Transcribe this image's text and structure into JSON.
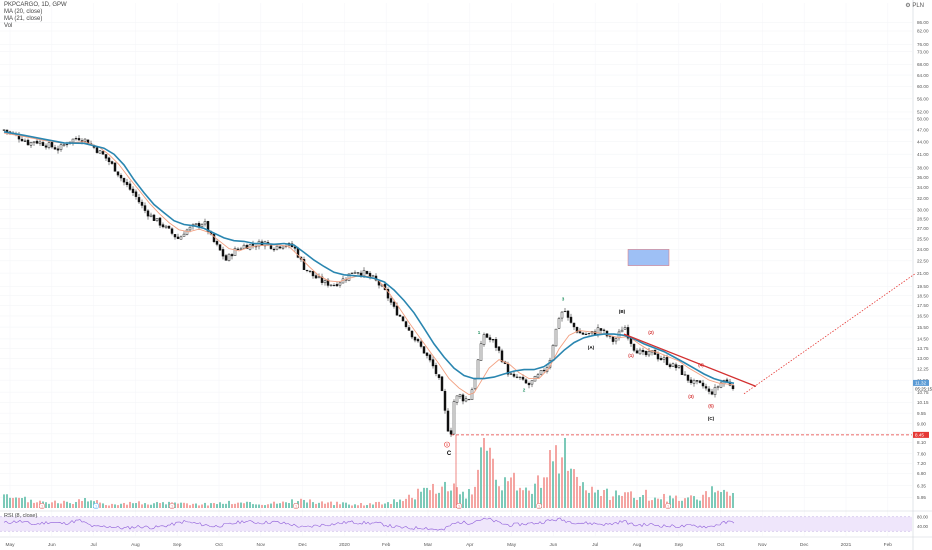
{
  "legend": {
    "symbol": "PKPCARGO, 1D, GPW",
    "ma1": "MA (20, close)",
    "ma2": "MA (21, close)",
    "vol": "Vol",
    "rsi": "RSI (8, close)"
  },
  "settings_label": "PLN",
  "chart_data": {
    "type": "candlestick",
    "title": "PKPCARGO, 1D, GPW",
    "y_scale": "log",
    "ylim": [
      5.6,
      96
    ],
    "price_ticks": [
      "86.00",
      "82.00",
      "76.00",
      "73.00",
      "68.00",
      "64.00",
      "60.00",
      "56.00",
      "52.00",
      "50.00",
      "47.00",
      "44.00",
      "41.00",
      "38.00",
      "36.00",
      "34.00",
      "32.00",
      "30.00",
      "28.50",
      "27.00",
      "25.50",
      "24.00",
      "22.50",
      "21.00",
      "19.50",
      "18.50",
      "17.50",
      "16.50",
      "15.50",
      "14.50",
      "13.75",
      "13.00",
      "12.25",
      "11.50",
      "10.75",
      "10.15",
      "9.55",
      "9.00",
      "8.50",
      "8.10",
      "7.60",
      "7.20",
      "6.80",
      "6.35",
      "5.95"
    ],
    "x_tick_labels": [
      "May",
      "Jun",
      "Jul",
      "Aug",
      "Sep",
      "Oct",
      "Nov",
      "Dec",
      "2020",
      "Feb",
      "Mar",
      "Apr",
      "May",
      "Jun",
      "Jul",
      "Aug",
      "Sep",
      "Oct",
      "Nov",
      "Dec",
      "2021",
      "Feb"
    ],
    "price_path": [
      [
        0,
        47
      ],
      [
        10,
        45.8
      ],
      [
        20,
        44.5
      ],
      [
        25,
        43.5
      ],
      [
        30,
        44.2
      ],
      [
        40,
        43.5
      ],
      [
        50,
        42.6
      ],
      [
        55,
        42.2
      ],
      [
        65,
        44.2
      ],
      [
        75,
        45
      ],
      [
        82,
        44.3
      ],
      [
        90,
        42.6
      ],
      [
        100,
        40.6
      ],
      [
        110,
        38.1
      ],
      [
        120,
        35
      ],
      [
        130,
        32.8
      ],
      [
        140,
        30
      ],
      [
        150,
        28.5
      ],
      [
        160,
        27.3
      ],
      [
        170,
        26
      ],
      [
        175,
        25.4
      ],
      [
        180,
        26.5
      ],
      [
        190,
        27.3
      ],
      [
        200,
        28
      ],
      [
        208,
        25.4
      ],
      [
        215,
        24
      ],
      [
        222,
        22.6
      ],
      [
        230,
        23.8
      ],
      [
        240,
        24.5
      ],
      [
        250,
        24.6
      ],
      [
        260,
        25
      ],
      [
        270,
        24.3
      ],
      [
        280,
        24.7
      ],
      [
        290,
        24.3
      ],
      [
        300,
        21.7
      ],
      [
        310,
        20.6
      ],
      [
        320,
        19.9
      ],
      [
        330,
        19.7
      ],
      [
        340,
        20.3
      ],
      [
        350,
        21.3
      ],
      [
        360,
        21
      ],
      [
        370,
        20.3
      ],
      [
        380,
        19.1
      ],
      [
        390,
        17.2
      ],
      [
        400,
        16
      ],
      [
        410,
        14.6
      ],
      [
        420,
        13.5
      ],
      [
        430,
        12.3
      ],
      [
        436,
        11.3
      ],
      [
        440,
        10
      ],
      [
        443,
        8.8
      ],
      [
        447,
        8.6
      ],
      [
        450,
        10.2
      ],
      [
        455,
        10.6
      ],
      [
        460,
        10.3
      ],
      [
        465,
        10.4
      ],
      [
        470,
        11.3
      ],
      [
        475,
        13.2
      ],
      [
        480,
        14.9
      ],
      [
        485,
        14.5
      ],
      [
        490,
        14.2
      ],
      [
        495,
        13.5
      ],
      [
        500,
        12.6
      ],
      [
        505,
        11.9
      ],
      [
        510,
        11.6
      ],
      [
        515,
        11.7
      ],
      [
        520,
        11.3
      ],
      [
        525,
        11.2
      ],
      [
        530,
        11.5
      ],
      [
        535,
        11.8
      ],
      [
        540,
        12.2
      ],
      [
        545,
        12.6
      ],
      [
        550,
        14.5
      ],
      [
        555,
        16.4
      ],
      [
        560,
        17.2
      ],
      [
        565,
        16
      ],
      [
        570,
        15.5
      ],
      [
        575,
        15
      ],
      [
        580,
        14.9
      ],
      [
        585,
        14.9
      ],
      [
        590,
        15
      ],
      [
        595,
        15.4
      ],
      [
        600,
        15
      ],
      [
        605,
        14.6
      ],
      [
        610,
        14.3
      ],
      [
        615,
        14.9
      ],
      [
        620,
        15.7
      ],
      [
        625,
        14.6
      ],
      [
        630,
        13.8
      ],
      [
        635,
        13.5
      ],
      [
        640,
        13.2
      ],
      [
        645,
        13.3
      ],
      [
        650,
        13.5
      ],
      [
        655,
        13
      ],
      [
        660,
        12.9
      ],
      [
        665,
        12.6
      ],
      [
        670,
        12.4
      ],
      [
        675,
        12.3
      ],
      [
        680,
        11.8
      ],
      [
        685,
        11.5
      ],
      [
        690,
        11.3
      ],
      [
        695,
        11.2
      ],
      [
        700,
        11.1
      ],
      [
        705,
        10.7
      ],
      [
        710,
        10.8
      ],
      [
        715,
        11.2
      ],
      [
        720,
        11.5
      ],
      [
        725,
        11.3
      ],
      [
        730,
        11.1
      ]
    ],
    "series": [
      {
        "name": "MA (20, close)",
        "color": "#f2a081"
      },
      {
        "name": "MA (21, close)",
        "color": "#2a86b0"
      }
    ],
    "ma_slow": [
      [
        0,
        46.5
      ],
      [
        20,
        45.6
      ],
      [
        40,
        44.6
      ],
      [
        60,
        43.7
      ],
      [
        80,
        43.6
      ],
      [
        100,
        42.4
      ],
      [
        110,
        41
      ],
      [
        120,
        38.6
      ],
      [
        130,
        35.5
      ],
      [
        140,
        33
      ],
      [
        150,
        30.9
      ],
      [
        160,
        29.5
      ],
      [
        170,
        28.2
      ],
      [
        180,
        27.6
      ],
      [
        190,
        27.4
      ],
      [
        200,
        27
      ],
      [
        210,
        26.3
      ],
      [
        220,
        25.6
      ],
      [
        230,
        25.2
      ],
      [
        240,
        25.1
      ],
      [
        250,
        24.8
      ],
      [
        260,
        24.8
      ],
      [
        270,
        24.7
      ],
      [
        280,
        24.8
      ],
      [
        290,
        24.6
      ],
      [
        300,
        23.6
      ],
      [
        310,
        22.6
      ],
      [
        320,
        21.8
      ],
      [
        330,
        21.1
      ],
      [
        340,
        20.8
      ],
      [
        350,
        20.7
      ],
      [
        360,
        20.6
      ],
      [
        370,
        20.4
      ],
      [
        380,
        20
      ],
      [
        390,
        19.1
      ],
      [
        400,
        18
      ],
      [
        410,
        16.8
      ],
      [
        420,
        15.4
      ],
      [
        430,
        14.1
      ],
      [
        440,
        13.1
      ],
      [
        450,
        12.3
      ],
      [
        460,
        11.8
      ],
      [
        470,
        11.6
      ],
      [
        480,
        11.6
      ],
      [
        490,
        11.7
      ],
      [
        500,
        11.9
      ],
      [
        510,
        12.1
      ],
      [
        520,
        12.2
      ],
      [
        530,
        12.2
      ],
      [
        540,
        12.4
      ],
      [
        550,
        12.9
      ],
      [
        560,
        13.6
      ],
      [
        570,
        14.2
      ],
      [
        580,
        14.6
      ],
      [
        590,
        14.8
      ],
      [
        600,
        14.9
      ],
      [
        610,
        14.9
      ],
      [
        620,
        14.8
      ],
      [
        630,
        14.5
      ],
      [
        640,
        14.1
      ],
      [
        650,
        13.8
      ],
      [
        660,
        13.5
      ],
      [
        670,
        13.1
      ],
      [
        680,
        12.7
      ],
      [
        690,
        12.3
      ],
      [
        700,
        11.9
      ],
      [
        710,
        11.6
      ],
      [
        720,
        11.4
      ],
      [
        730,
        11.3
      ]
    ],
    "ma_fast": [
      [
        0,
        46.2
      ],
      [
        20,
        45.3
      ],
      [
        40,
        44.3
      ],
      [
        60,
        43.6
      ],
      [
        80,
        44
      ],
      [
        95,
        42.7
      ],
      [
        105,
        40.9
      ],
      [
        115,
        38.7
      ],
      [
        125,
        35.9
      ],
      [
        135,
        33.5
      ],
      [
        145,
        31.2
      ],
      [
        155,
        29.4
      ],
      [
        165,
        27.9
      ],
      [
        175,
        26.8
      ],
      [
        185,
        26.5
      ],
      [
        195,
        26.9
      ],
      [
        205,
        26.4
      ],
      [
        215,
        25.2
      ],
      [
        225,
        24.1
      ],
      [
        235,
        23.8
      ],
      [
        245,
        24.3
      ],
      [
        255,
        24.5
      ],
      [
        265,
        24.6
      ],
      [
        275,
        24.6
      ],
      [
        285,
        24.4
      ],
      [
        295,
        23.1
      ],
      [
        305,
        21.8
      ],
      [
        315,
        20.7
      ],
      [
        325,
        20.1
      ],
      [
        335,
        20
      ],
      [
        345,
        20.4
      ],
      [
        355,
        20.7
      ],
      [
        365,
        20.6
      ],
      [
        375,
        20.1
      ],
      [
        385,
        18.8
      ],
      [
        395,
        17.3
      ],
      [
        405,
        15.9
      ],
      [
        415,
        14.7
      ],
      [
        425,
        13.6
      ],
      [
        435,
        12.6
      ],
      [
        445,
        11.6
      ],
      [
        455,
        11
      ],
      [
        465,
        10.6
      ],
      [
        470,
        10.7
      ],
      [
        475,
        11.2
      ],
      [
        485,
        12.3
      ],
      [
        495,
        12.9
      ],
      [
        505,
        12.6
      ],
      [
        515,
        12
      ],
      [
        525,
        11.6
      ],
      [
        535,
        11.6
      ],
      [
        545,
        12.3
      ],
      [
        555,
        13.7
      ],
      [
        565,
        14.8
      ],
      [
        575,
        15.2
      ],
      [
        585,
        15.1
      ],
      [
        595,
        15
      ],
      [
        605,
        14.8
      ],
      [
        615,
        14.6
      ],
      [
        625,
        14.7
      ],
      [
        635,
        14.1
      ],
      [
        645,
        13.6
      ],
      [
        655,
        13.4
      ],
      [
        665,
        13.1
      ],
      [
        675,
        12.8
      ],
      [
        685,
        12.3
      ],
      [
        695,
        11.9
      ],
      [
        705,
        11.5
      ],
      [
        715,
        11.3
      ],
      [
        730,
        11.2
      ]
    ],
    "volume": [
      [
        0,
        0.16
      ],
      [
        35,
        0.1
      ],
      [
        60,
        0.08
      ],
      [
        85,
        0.12
      ],
      [
        100,
        0.06
      ],
      [
        130,
        0.08
      ],
      [
        165,
        0.07
      ],
      [
        200,
        0.06
      ],
      [
        230,
        0.09
      ],
      [
        260,
        0.06
      ],
      [
        295,
        0.12
      ],
      [
        330,
        0.07
      ],
      [
        360,
        0.06
      ],
      [
        390,
        0.1
      ],
      [
        405,
        0.18
      ],
      [
        415,
        0.22
      ],
      [
        425,
        0.28
      ],
      [
        435,
        0.3
      ],
      [
        440,
        0.32
      ],
      [
        445,
        0.35
      ],
      [
        450,
        0.3
      ],
      [
        460,
        0.22
      ],
      [
        470,
        0.2
      ],
      [
        475,
        0.6
      ],
      [
        480,
        0.9
      ],
      [
        485,
        0.7
      ],
      [
        490,
        0.55
      ],
      [
        495,
        0.45
      ],
      [
        500,
        0.35
      ],
      [
        505,
        0.32
      ],
      [
        510,
        0.4
      ],
      [
        515,
        0.3
      ],
      [
        520,
        0.25
      ],
      [
        530,
        0.3
      ],
      [
        540,
        0.5
      ],
      [
        545,
        0.7
      ],
      [
        550,
        0.95
      ],
      [
        553,
        0.75
      ],
      [
        556,
        0.55
      ],
      [
        560,
        1.0
      ],
      [
        565,
        0.65
      ],
      [
        570,
        0.5
      ],
      [
        575,
        0.3
      ],
      [
        590,
        0.3
      ],
      [
        600,
        0.22
      ],
      [
        610,
        0.2
      ],
      [
        620,
        0.25
      ],
      [
        630,
        0.2
      ],
      [
        640,
        0.22
      ],
      [
        650,
        0.12
      ],
      [
        660,
        0.16
      ],
      [
        670,
        0.14
      ],
      [
        680,
        0.18
      ],
      [
        690,
        0.15
      ],
      [
        700,
        0.2
      ],
      [
        710,
        0.25
      ],
      [
        720,
        0.27
      ],
      [
        730,
        0.25
      ]
    ],
    "rsi": [
      [
        0,
        55
      ],
      [
        15,
        62
      ],
      [
        30,
        48
      ],
      [
        45,
        58
      ],
      [
        60,
        52
      ],
      [
        75,
        65
      ],
      [
        90,
        38
      ],
      [
        105,
        40
      ],
      [
        120,
        32
      ],
      [
        135,
        40
      ],
      [
        150,
        35
      ],
      [
        165,
        45
      ],
      [
        180,
        60
      ],
      [
        195,
        50
      ],
      [
        210,
        40
      ],
      [
        225,
        48
      ],
      [
        240,
        62
      ],
      [
        255,
        55
      ],
      [
        270,
        58
      ],
      [
        285,
        50
      ],
      [
        300,
        35
      ],
      [
        315,
        45
      ],
      [
        330,
        50
      ],
      [
        345,
        58
      ],
      [
        360,
        55
      ],
      [
        375,
        52
      ],
      [
        390,
        38
      ],
      [
        405,
        32
      ],
      [
        420,
        35
      ],
      [
        430,
        28
      ],
      [
        440,
        25
      ],
      [
        445,
        42
      ],
      [
        455,
        58
      ],
      [
        465,
        54
      ],
      [
        475,
        68
      ],
      [
        485,
        70
      ],
      [
        495,
        55
      ],
      [
        505,
        45
      ],
      [
        520,
        50
      ],
      [
        535,
        55
      ],
      [
        545,
        64
      ],
      [
        555,
        70
      ],
      [
        565,
        60
      ],
      [
        575,
        55
      ],
      [
        590,
        52
      ],
      [
        605,
        48
      ],
      [
        620,
        62
      ],
      [
        630,
        45
      ],
      [
        645,
        48
      ],
      [
        660,
        42
      ],
      [
        675,
        40
      ],
      [
        690,
        43
      ],
      [
        705,
        38
      ],
      [
        720,
        55
      ],
      [
        730,
        60
      ]
    ],
    "rsi_ticks": [
      "80.00",
      "40.00"
    ],
    "wave_labels": [
      {
        "text": "C",
        "x": 445,
        "price": 7.55,
        "color": "#000000"
      },
      {
        "text": "1",
        "x": 475,
        "price": 14.9,
        "color": "#1f8f5f"
      },
      {
        "text": "2",
        "x": 520,
        "price": 10.8,
        "color": "#1f8f5f"
      },
      {
        "text": "3",
        "x": 559,
        "price": 18.0,
        "color": "#1f8f5f"
      },
      {
        "text": "(A)",
        "x": 587,
        "price": 13.7,
        "color": "#000000"
      },
      {
        "text": "(B)",
        "x": 618,
        "price": 16.8,
        "color": "#000000"
      },
      {
        "text": "(1)",
        "x": 627,
        "price": 13.1,
        "color": "#d32f2f"
      },
      {
        "text": "(2)",
        "x": 647,
        "price": 14.9,
        "color": "#d32f2f"
      },
      {
        "text": "(3)",
        "x": 687,
        "price": 10.4,
        "color": "#d32f2f"
      },
      {
        "text": "(4)",
        "x": 697,
        "price": 12.4,
        "color": "#d32f2f"
      },
      {
        "text": "(5)",
        "x": 707,
        "price": 9.85,
        "color": "#d32f2f"
      },
      {
        "text": "(C)",
        "x": 707,
        "price": 9.2,
        "color": "#000000"
      }
    ],
    "markers": [
      {
        "text": "1",
        "x": 38,
        "color": "#e57373"
      },
      {
        "text": "1",
        "x": 92,
        "color": "#64b5f6"
      },
      {
        "text": "1",
        "x": 168,
        "color": "#e57373"
      },
      {
        "text": "1",
        "x": 292,
        "color": "#e57373"
      },
      {
        "text": "1",
        "x": 455,
        "color": "#e57373"
      },
      {
        "text": "1",
        "x": 535,
        "color": "#e57373"
      },
      {
        "text": "1",
        "x": 664,
        "color": "#e57373"
      }
    ],
    "support_level": 8.45,
    "trendline": [
      [
        620,
        14.9
      ],
      [
        752,
        11.1
      ]
    ],
    "projection": [
      [
        740,
        10.65
      ],
      [
        912,
        21.0
      ]
    ],
    "target_box": {
      "x1": 624,
      "x2": 665,
      "p_top": 24.0,
      "p_bottom": 21.9,
      "color": "#9ec0f5"
    },
    "price_badges": [
      {
        "text": "11.32",
        "price": 11.32,
        "color": "#5b9bd5"
      },
      {
        "text": "05:25:15",
        "price": 10.95,
        "color": "#ffffff"
      },
      {
        "text": "8.45",
        "price": 8.45,
        "color": "#e53935"
      }
    ]
  }
}
